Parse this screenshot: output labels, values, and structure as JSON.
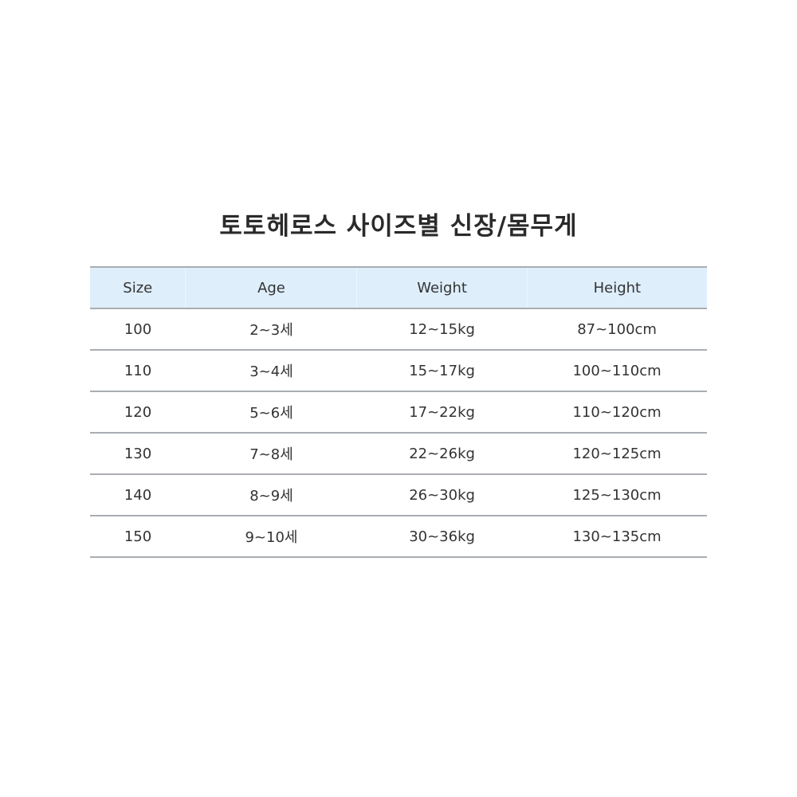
{
  "title": "토토헤로스 사이즈별 신장/몸무게",
  "table": {
    "headers": [
      "Size",
      "Age",
      "Weight",
      "Height"
    ],
    "rows": [
      [
        "100",
        "2~3세",
        "12~15kg",
        "87~100cm"
      ],
      [
        "110",
        "3~4세",
        "15~17kg",
        "100~110cm"
      ],
      [
        "120",
        "5~6세",
        "17~22kg",
        "110~120cm"
      ],
      [
        "130",
        "7~8세",
        "22~26kg",
        "120~125cm"
      ],
      [
        "140",
        "8~9세",
        "26~30kg",
        "125~130cm"
      ],
      [
        "150",
        "9~10세",
        "30~36kg",
        "130~135cm"
      ]
    ]
  },
  "colors": {
    "header_bg": "#deeefb",
    "border": "#a9adb2"
  }
}
